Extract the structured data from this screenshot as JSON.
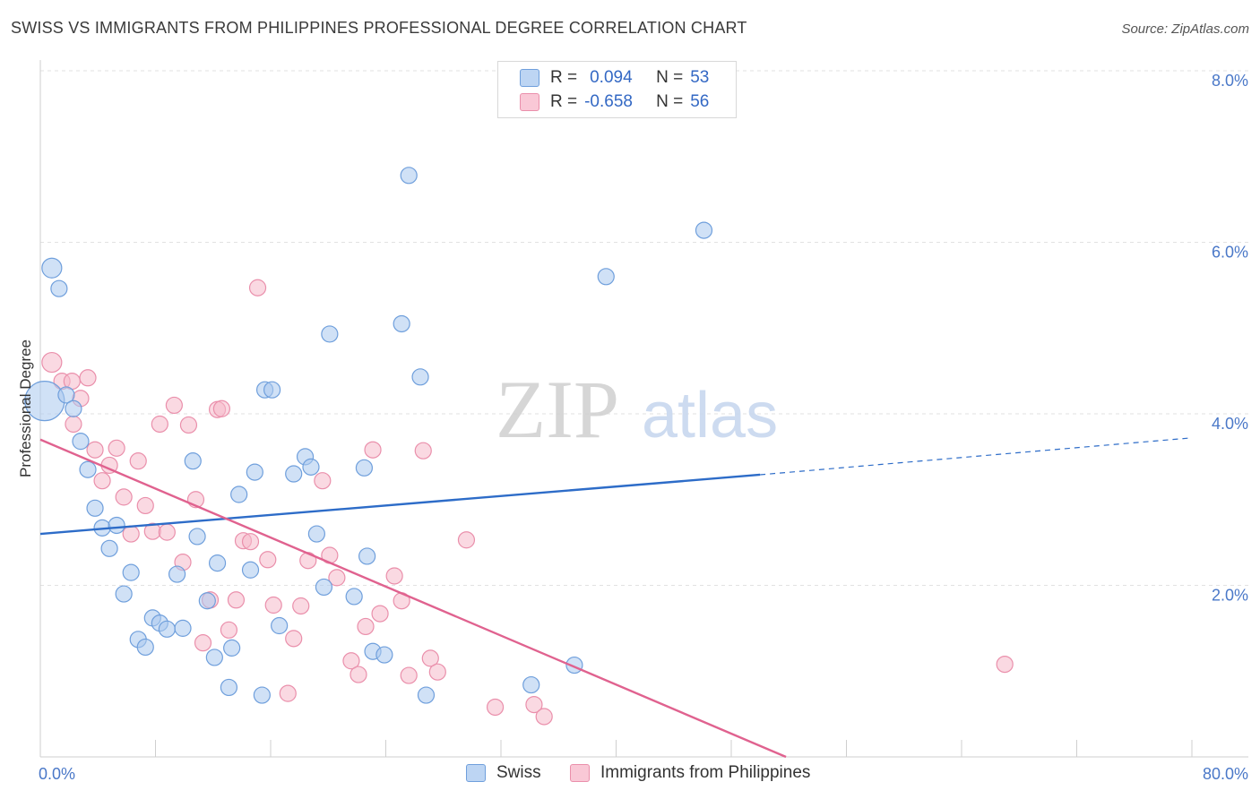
{
  "header": {
    "title": "SWISS VS IMMIGRANTS FROM PHILIPPINES PROFESSIONAL DEGREE CORRELATION CHART",
    "source": "Source: ZipAtlas.com"
  },
  "watermark": {
    "zip": "ZIP",
    "atlas": "atlas"
  },
  "colors": {
    "swiss_fill": "#a9c8ef",
    "swiss_stroke": "#6f9fdc",
    "swiss_line": "#2d6cc8",
    "phil_fill": "#f6b9cb",
    "phil_stroke": "#ea8fab",
    "phil_line": "#e0628f",
    "grid": "#e2e2e2",
    "axis_text": "#4a78c8"
  },
  "legend": {
    "rows": [
      {
        "r_label": "R =",
        "r_value": "0.094",
        "n_label": "N =",
        "n_value": "53"
      },
      {
        "r_label": "R =",
        "r_value": "-0.658",
        "n_label": "N =",
        "n_value": "56"
      }
    ]
  },
  "bottom_legend": {
    "swiss": "Swiss",
    "phil": "Immigrants from Philippines"
  },
  "chart_data": {
    "type": "scatter",
    "ylabel": "Professional Degree",
    "xlabel": "",
    "xlim": [
      0,
      80
    ],
    "ylim": [
      0,
      8
    ],
    "x_tick_labels": {
      "min": "0.0%",
      "max": "80.0%"
    },
    "y_ticks": [
      {
        "value": 8,
        "label": "8.0%"
      },
      {
        "value": 6,
        "label": "6.0%"
      },
      {
        "value": 4,
        "label": "4.0%"
      },
      {
        "value": 2,
        "label": "2.0%"
      }
    ],
    "grid": true,
    "legend_position": "top-center",
    "series": [
      {
        "name": "Swiss",
        "trend": {
          "x0": 0,
          "y0": 2.6,
          "x1": 50,
          "y1": 3.29,
          "dashed_to_x": 80,
          "dashed_to_y": 3.72
        },
        "points": [
          [
            0.3,
            4.15,
            22
          ],
          [
            0.8,
            5.7,
            11
          ],
          [
            1.3,
            5.46,
            9
          ],
          [
            1.8,
            4.22,
            9
          ],
          [
            2.3,
            4.06,
            9
          ],
          [
            2.8,
            3.68,
            9
          ],
          [
            3.3,
            3.35,
            9
          ],
          [
            3.8,
            2.9,
            9
          ],
          [
            4.3,
            2.67,
            9
          ],
          [
            4.8,
            2.43,
            9
          ],
          [
            5.3,
            2.7,
            9
          ],
          [
            5.8,
            1.9,
            9
          ],
          [
            6.3,
            2.15,
            9
          ],
          [
            6.8,
            1.37,
            9
          ],
          [
            7.3,
            1.28,
            9
          ],
          [
            7.8,
            1.62,
            9
          ],
          [
            8.3,
            1.56,
            9
          ],
          [
            8.8,
            1.49,
            9
          ],
          [
            9.5,
            2.13,
            9
          ],
          [
            9.9,
            1.5,
            9
          ],
          [
            10.6,
            3.45,
            9
          ],
          [
            10.9,
            2.57,
            9
          ],
          [
            11.6,
            1.82,
            9
          ],
          [
            12.1,
            1.16,
            9
          ],
          [
            12.3,
            2.26,
            9
          ],
          [
            13.1,
            0.81,
            9
          ],
          [
            13.3,
            1.27,
            9
          ],
          [
            13.8,
            3.06,
            9
          ],
          [
            14.6,
            2.18,
            9
          ],
          [
            14.9,
            3.32,
            9
          ],
          [
            15.4,
            0.72,
            9
          ],
          [
            15.6,
            4.28,
            9
          ],
          [
            16.1,
            4.28,
            9
          ],
          [
            16.6,
            1.53,
            9
          ],
          [
            17.6,
            3.3,
            9
          ],
          [
            18.4,
            3.5,
            9
          ],
          [
            18.8,
            3.38,
            9
          ],
          [
            19.2,
            2.6,
            9
          ],
          [
            19.7,
            1.98,
            9
          ],
          [
            20.1,
            4.93,
            9
          ],
          [
            21.8,
            1.87,
            9
          ],
          [
            22.5,
            3.37,
            9
          ],
          [
            22.7,
            2.34,
            9
          ],
          [
            23.1,
            1.23,
            9
          ],
          [
            23.9,
            1.19,
            9
          ],
          [
            25.1,
            5.05,
            9
          ],
          [
            25.6,
            6.78,
            9
          ],
          [
            26.4,
            4.43,
            9
          ],
          [
            26.8,
            0.72,
            9
          ],
          [
            34.1,
            0.84,
            9
          ],
          [
            39.3,
            5.6,
            9
          ],
          [
            37.1,
            1.07,
            9
          ],
          [
            46.1,
            6.14,
            9
          ]
        ]
      },
      {
        "name": "Immigrants from Philippines",
        "trend": {
          "x0": 0,
          "y0": 3.7,
          "x1": 51.8,
          "y1": 0
        },
        "points": [
          [
            0.8,
            4.6,
            11
          ],
          [
            1.5,
            4.38,
            9
          ],
          [
            2.2,
            4.38,
            9
          ],
          [
            2.3,
            3.88,
            9
          ],
          [
            2.8,
            4.18,
            9
          ],
          [
            3.3,
            4.42,
            9
          ],
          [
            3.8,
            3.58,
            9
          ],
          [
            4.3,
            3.22,
            9
          ],
          [
            4.8,
            3.4,
            9
          ],
          [
            5.3,
            3.6,
            9
          ],
          [
            5.8,
            3.03,
            9
          ],
          [
            6.3,
            2.6,
            9
          ],
          [
            6.8,
            3.45,
            9
          ],
          [
            7.3,
            2.93,
            9
          ],
          [
            7.8,
            2.63,
            9
          ],
          [
            8.3,
            3.88,
            9
          ],
          [
            8.8,
            2.62,
            9
          ],
          [
            9.3,
            4.1,
            9
          ],
          [
            9.9,
            2.27,
            9
          ],
          [
            10.3,
            3.87,
            9
          ],
          [
            10.8,
            3.0,
            9
          ],
          [
            11.3,
            1.33,
            9
          ],
          [
            11.8,
            1.83,
            9
          ],
          [
            12.3,
            4.05,
            9
          ],
          [
            12.6,
            4.06,
            9
          ],
          [
            13.1,
            1.48,
            9
          ],
          [
            13.6,
            1.83,
            9
          ],
          [
            14.1,
            2.52,
            9
          ],
          [
            14.6,
            2.51,
            9
          ],
          [
            15.1,
            5.47,
            9
          ],
          [
            15.8,
            2.3,
            9
          ],
          [
            16.2,
            1.77,
            9
          ],
          [
            17.2,
            0.74,
            9
          ],
          [
            17.6,
            1.38,
            9
          ],
          [
            18.1,
            1.76,
            9
          ],
          [
            18.6,
            2.29,
            9
          ],
          [
            19.6,
            3.22,
            9
          ],
          [
            20.1,
            2.35,
            9
          ],
          [
            20.6,
            2.09,
            9
          ],
          [
            21.6,
            1.12,
            9
          ],
          [
            22.1,
            0.96,
            9
          ],
          [
            22.6,
            1.52,
            9
          ],
          [
            23.1,
            3.58,
            9
          ],
          [
            23.6,
            1.67,
            9
          ],
          [
            24.6,
            2.11,
            9
          ],
          [
            25.1,
            1.82,
            9
          ],
          [
            25.6,
            0.95,
            9
          ],
          [
            26.6,
            3.57,
            9
          ],
          [
            27.1,
            1.15,
            9
          ],
          [
            27.6,
            0.99,
            9
          ],
          [
            29.6,
            2.53,
            9
          ],
          [
            31.6,
            0.58,
            9
          ],
          [
            34.3,
            0.61,
            9
          ],
          [
            35.0,
            0.47,
            9
          ],
          [
            67.0,
            1.08,
            9
          ],
          [
            17.9,
            1.2,
            0
          ]
        ]
      }
    ]
  }
}
